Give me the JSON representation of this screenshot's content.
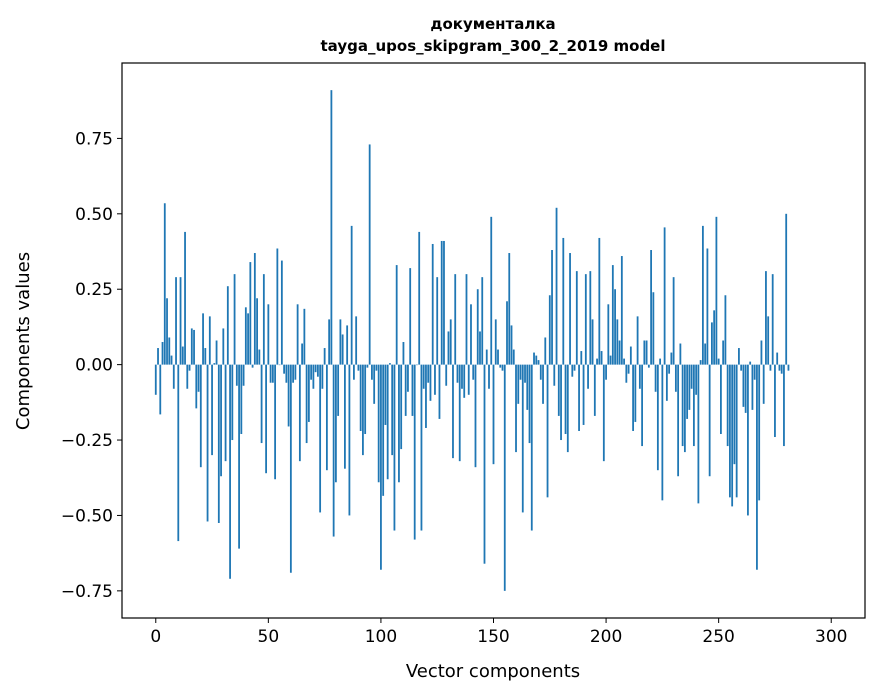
{
  "chart_data": {
    "type": "bar",
    "title": "документалка",
    "subtitle": "tayga_upos_skipgram_300_2_2019 model",
    "xlabel": "Vector components",
    "ylabel": "Components values",
    "xlim": [
      -15,
      315
    ],
    "ylim": [
      -0.84,
      1.0
    ],
    "xticks": [
      0,
      50,
      100,
      150,
      200,
      250,
      300
    ],
    "xtick_labels": [
      "0",
      "50",
      "100",
      "150",
      "200",
      "250",
      "300"
    ],
    "yticks": [
      -0.75,
      -0.5,
      -0.25,
      0,
      0.25,
      0.5,
      0.75
    ],
    "ytick_labels": [
      "−0.75",
      "−0.50",
      "−0.25",
      "0.00",
      "0.25",
      "0.50",
      "0.75"
    ],
    "grid": false,
    "color": "#1f77b4",
    "values": [
      -0.1,
      0.055,
      -0.165,
      0.075,
      0.535,
      0.22,
      0.09,
      0.03,
      -0.08,
      0.29,
      -0.585,
      0.29,
      0.06,
      0.44,
      -0.08,
      -0.02,
      0.12,
      0.115,
      -0.145,
      -0.09,
      -0.34,
      0.17,
      0.055,
      -0.52,
      0.16,
      -0.3,
      0.005,
      0.08,
      -0.525,
      -0.37,
      0.12,
      -0.32,
      0.26,
      -0.71,
      -0.25,
      0.3,
      -0.07,
      -0.61,
      -0.23,
      -0.07,
      0.19,
      0.17,
      0.34,
      -0.01,
      0.37,
      0.22,
      0.05,
      -0.26,
      0.3,
      -0.36,
      0.2,
      -0.06,
      -0.06,
      -0.38,
      0.385,
      0.0,
      0.345,
      -0.03,
      -0.06,
      -0.205,
      -0.69,
      -0.06,
      -0.05,
      0.2,
      -0.32,
      0.07,
      0.185,
      -0.26,
      -0.19,
      -0.05,
      -0.08,
      -0.025,
      -0.04,
      -0.49,
      -0.08,
      0.055,
      -0.35,
      0.15,
      0.91,
      -0.57,
      -0.39,
      -0.17,
      0.15,
      0.1,
      -0.345,
      0.13,
      -0.5,
      0.46,
      -0.05,
      0.16,
      -0.02,
      -0.22,
      -0.3,
      -0.23,
      -0.01,
      0.73,
      -0.05,
      -0.13,
      -0.02,
      -0.39,
      -0.68,
      -0.435,
      -0.2,
      -0.38,
      0.005,
      -0.3,
      -0.55,
      0.33,
      -0.39,
      -0.28,
      0.075,
      -0.17,
      -0.09,
      0.32,
      -0.17,
      -0.58,
      0.0,
      0.44,
      -0.55,
      -0.08,
      -0.21,
      -0.06,
      -0.12,
      0.4,
      -0.1,
      0.29,
      -0.18,
      0.41,
      0.41,
      -0.07,
      0.11,
      0.15,
      -0.31,
      0.3,
      -0.06,
      -0.32,
      -0.08,
      -0.11,
      0.3,
      -0.1,
      0.2,
      -0.05,
      -0.34,
      0.25,
      0.11,
      0.29,
      -0.66,
      0.05,
      -0.08,
      0.49,
      -0.33,
      0.15,
      0.05,
      -0.01,
      -0.02,
      -0.75,
      0.21,
      0.37,
      0.13,
      0.05,
      -0.29,
      -0.13,
      -0.05,
      -0.49,
      -0.06,
      -0.15,
      -0.26,
      -0.55,
      0.04,
      0.03,
      0.015,
      -0.05,
      -0.13,
      0.09,
      -0.44,
      0.23,
      0.38,
      -0.07,
      0.52,
      -0.17,
      -0.25,
      0.42,
      -0.23,
      -0.29,
      0.37,
      -0.04,
      -0.02,
      0.31,
      -0.22,
      0.045,
      -0.2,
      0.3,
      -0.08,
      0.31,
      0.15,
      -0.17,
      0.02,
      0.42,
      0.045,
      -0.32,
      -0.05,
      0.2,
      0.03,
      0.33,
      0.25,
      0.15,
      0.08,
      0.36,
      0.02,
      -0.06,
      -0.03,
      0.06,
      -0.22,
      -0.19,
      0.16,
      -0.08,
      -0.27,
      0.08,
      0.08,
      -0.01,
      0.38,
      0.24,
      -0.09,
      -0.35,
      0.02,
      -0.45,
      0.455,
      -0.12,
      -0.03,
      0.04,
      0.29,
      -0.09,
      -0.37,
      0.07,
      -0.27,
      -0.29,
      -0.18,
      -0.15,
      -0.08,
      -0.27,
      -0.1,
      -0.46,
      0.015,
      0.46,
      0.07,
      0.385,
      -0.37,
      0.14,
      0.18,
      0.49,
      0.02,
      -0.23,
      0.08,
      0.23,
      -0.27,
      -0.44,
      -0.47,
      -0.33,
      -0.44,
      0.055,
      -0.02,
      -0.14,
      -0.16,
      -0.5,
      0.01,
      -0.15,
      -0.05,
      -0.68,
      -0.45,
      0.08,
      -0.13,
      0.31,
      0.16,
      -0.02,
      0.3,
      -0.24,
      0.04,
      -0.02,
      -0.03,
      -0.27,
      0.5,
      -0.02
    ]
  }
}
